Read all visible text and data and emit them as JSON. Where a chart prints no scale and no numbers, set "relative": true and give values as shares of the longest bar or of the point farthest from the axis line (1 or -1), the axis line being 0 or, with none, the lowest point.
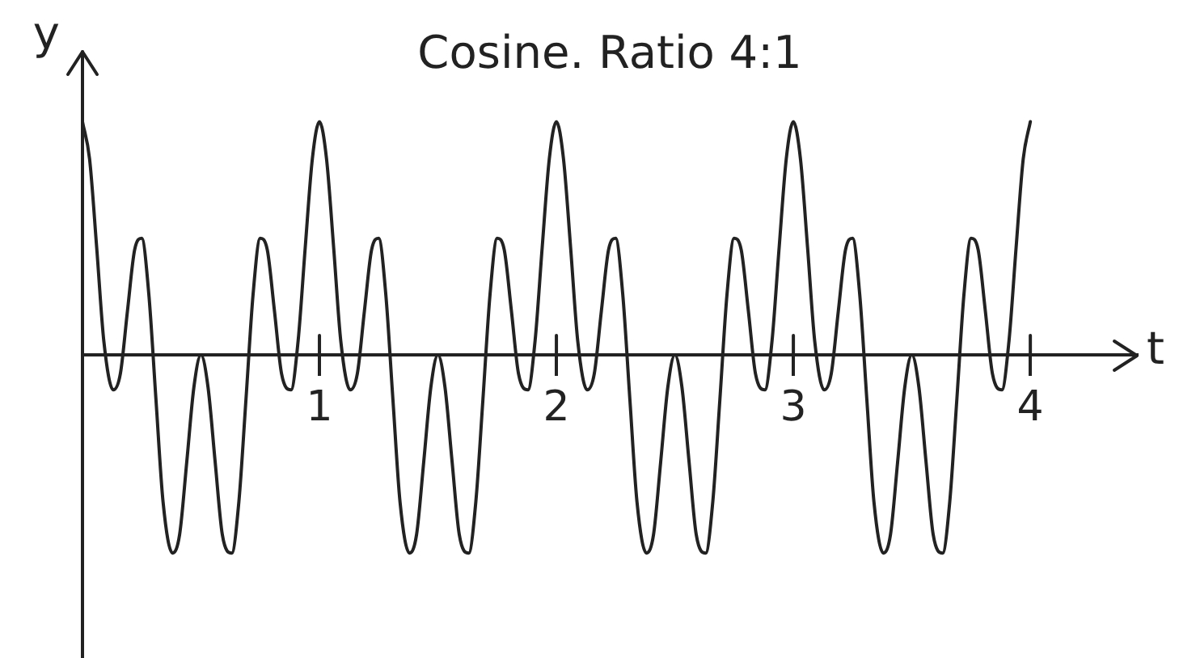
{
  "chart_data": {
    "type": "line",
    "title": "Cosine. Ratio 4:1",
    "xlabel": "t",
    "ylabel": "y",
    "relative": true,
    "marker": "none",
    "xlim": [
      0,
      4.45
    ],
    "xticks": [
      1,
      2,
      3,
      4
    ],
    "x": [
      0,
      0.03,
      0.06,
      0.09,
      0.13,
      0.16,
      0.19,
      0.22,
      0.25,
      0.28,
      0.31,
      0.34,
      0.38,
      0.41,
      0.44,
      0.47,
      0.5,
      0.53,
      0.56,
      0.59,
      0.63,
      0.66,
      0.69,
      0.72,
      0.75,
      0.78,
      0.81,
      0.84,
      0.88,
      0.91,
      0.94,
      0.97,
      1,
      1.03,
      1.06,
      1.09,
      1.13,
      1.16,
      1.19,
      1.22,
      1.25,
      1.28,
      1.31,
      1.34,
      1.38,
      1.41,
      1.44,
      1.47,
      1.5,
      1.53,
      1.56,
      1.59,
      1.63,
      1.66,
      1.69,
      1.72,
      1.75,
      1.78,
      1.81,
      1.84,
      1.88,
      1.91,
      1.94,
      1.97,
      2,
      2.03,
      2.06,
      2.09,
      2.13,
      2.16,
      2.19,
      2.22,
      2.25,
      2.28,
      2.31,
      2.34,
      2.38,
      2.41,
      2.44,
      2.47,
      2.5,
      2.53,
      2.56,
      2.59,
      2.63,
      2.66,
      2.69,
      2.72,
      2.75,
      2.78,
      2.81,
      2.84,
      2.88,
      2.91,
      2.94,
      2.97,
      3,
      3.03,
      3.06,
      3.09,
      3.13,
      3.16,
      3.19,
      3.22,
      3.25,
      3.28,
      3.31,
      3.34,
      3.38,
      3.41,
      3.44,
      3.47,
      3.5,
      3.53,
      3.56,
      3.59,
      3.63,
      3.66,
      3.69,
      3.72,
      3.75,
      3.78,
      3.81,
      3.84,
      3.88,
      3.91,
      3.94,
      3.97,
      4
    ],
    "series": [
      {
        "color": "#222222",
        "values": [
          1,
          0.84,
          0.46,
          0.06,
          -0.15,
          -0.08,
          0.19,
          0.45,
          0.5,
          0.26,
          -0.19,
          -0.63,
          -0.85,
          -0.77,
          -0.46,
          -0.14,
          0,
          -0.14,
          -0.46,
          -0.77,
          -0.85,
          -0.63,
          -0.19,
          0.26,
          0.5,
          0.45,
          0.19,
          -0.08,
          -0.15,
          0.06,
          0.46,
          0.84,
          1,
          0.84,
          0.46,
          0.06,
          -0.15,
          -0.08,
          0.19,
          0.45,
          0.5,
          0.26,
          -0.19,
          -0.63,
          -0.85,
          -0.77,
          -0.46,
          -0.14,
          0,
          -0.14,
          -0.46,
          -0.77,
          -0.85,
          -0.63,
          -0.19,
          0.26,
          0.5,
          0.45,
          0.19,
          -0.08,
          -0.15,
          0.06,
          0.46,
          0.84,
          1,
          0.84,
          0.46,
          0.06,
          -0.15,
          -0.08,
          0.19,
          0.45,
          0.5,
          0.26,
          -0.19,
          -0.63,
          -0.85,
          -0.77,
          -0.46,
          -0.14,
          0,
          -0.14,
          -0.46,
          -0.77,
          -0.85,
          -0.63,
          -0.19,
          0.26,
          0.5,
          0.45,
          0.19,
          -0.08,
          -0.15,
          0.06,
          0.46,
          0.84,
          1,
          0.84,
          0.46,
          0.06,
          -0.15,
          -0.08,
          0.19,
          0.45,
          0.5,
          0.26,
          -0.19,
          -0.63,
          -0.85,
          -0.77,
          -0.46,
          -0.14,
          0,
          -0.14,
          -0.46,
          -0.77,
          -0.85,
          -0.63,
          -0.19,
          0.26,
          0.5,
          0.45,
          0.19,
          -0.08,
          -0.15,
          0.06,
          0.46,
          0.84,
          1
        ]
      }
    ]
  }
}
